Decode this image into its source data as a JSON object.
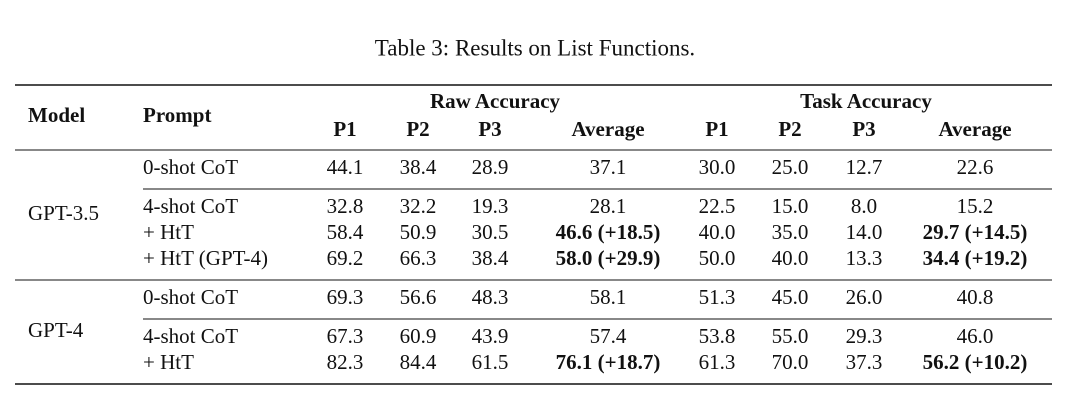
{
  "caption": "Table 3: Results on List Functions.",
  "header": {
    "model": "Model",
    "prompt": "Prompt",
    "groups": [
      "Raw Accuracy",
      "Task Accuracy"
    ],
    "columns": [
      "P1",
      "P2",
      "P3",
      "Average",
      "P1",
      "P2",
      "P3",
      "Average"
    ]
  },
  "table": {
    "groups": [
      {
        "model": "GPT-3.5",
        "blocks": [
          [
            {
              "prompt": "0-shot CoT",
              "cells": [
                "44.1",
                "38.4",
                "28.9",
                "37.1",
                "30.0",
                "25.0",
                "12.7",
                "22.6"
              ]
            }
          ],
          [
            {
              "prompt": "4-shot CoT",
              "cells": [
                "32.8",
                "32.2",
                "19.3",
                "28.1",
                "22.5",
                "15.0",
                "8.0",
                "15.2"
              ]
            },
            {
              "prompt": "+ HtT",
              "cells": [
                "58.4",
                "50.9",
                "30.5",
                "46.6 (+18.5)",
                "40.0",
                "35.0",
                "14.0",
                "29.7 (+14.5)"
              ]
            },
            {
              "prompt": "+ HtT (GPT-4)",
              "cells": [
                "69.2",
                "66.3",
                "38.4",
                "58.0 (+29.9)",
                "50.0",
                "40.0",
                "13.3",
                "34.4 (+19.2)"
              ]
            }
          ]
        ]
      },
      {
        "model": "GPT-4",
        "blocks": [
          [
            {
              "prompt": "0-shot CoT",
              "cells": [
                "69.3",
                "56.6",
                "48.3",
                "58.1",
                "51.3",
                "45.0",
                "26.0",
                "40.8"
              ]
            }
          ],
          [
            {
              "prompt": "4-shot CoT",
              "cells": [
                "67.3",
                "60.9",
                "43.9",
                "57.4",
                "53.8",
                "55.0",
                "29.3",
                "46.0"
              ]
            },
            {
              "prompt": "+ HtT",
              "cells": [
                "82.3",
                "84.4",
                "61.5",
                "76.1 (+18.7)",
                "61.3",
                "70.0",
                "37.3",
                "56.2 (+10.2)"
              ]
            }
          ]
        ]
      }
    ]
  }
}
